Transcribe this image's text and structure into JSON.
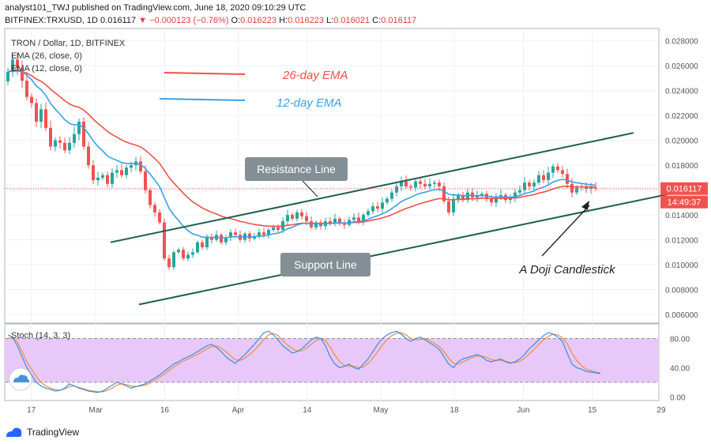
{
  "header": {
    "line1": "analyst101_TWJ published on TradingView.com, June 18, 2020 09:10:29 UTC",
    "symbol": "BITFINEX:TRXUSD, 1D",
    "last": "0.016117",
    "arrow": "▼",
    "change": "−0.000123 (−0.76%)",
    "o_label": "O:",
    "o": "0.016223",
    "h_label": "H:",
    "h": "0.016223",
    "l_label": "L:",
    "l": "0.016021",
    "c_label": "C:",
    "c": "0.016117"
  },
  "legend": {
    "title": "TRON / Dollar, 1D, BITFINEX",
    "ema26": "EMA (26, close, 0)",
    "ema12": "EMA (12, close, 0)",
    "stoch": "Stoch (14, 3, 3)"
  },
  "annotations": {
    "ema26_label": "26-day EMA",
    "ema12_label": "12-day EMA",
    "resistance": "Resistance Line",
    "support": "Support Line",
    "doji": "A Doji Candlestick"
  },
  "price_tag": {
    "value": "0.016117",
    "countdown": "14:49:37"
  },
  "colors": {
    "up": "#26a69a",
    "down": "#ef5350",
    "ema26": "#f0504a",
    "ema12": "#3aa0e8",
    "channel": "#1d5f4b",
    "stoch_k": "#3a8ee6",
    "stoch_d": "#f08c40",
    "stoch_band": "#e7c8f8"
  },
  "footer": {
    "brand": "TradingView",
    "logo_icon": "tradingview-logo-icon"
  },
  "chart_data": [
    {
      "type": "candlestick",
      "title": "TRON / Dollar, 1D, BITFINEX",
      "x_ticks": [
        "17",
        "Mar",
        "16",
        "Apr",
        "14",
        "May",
        "18",
        "Jun",
        "15",
        "29"
      ],
      "y_ticks": [
        "0.028000",
        "0.026000",
        "0.024000",
        "0.022000",
        "0.020000",
        "0.018000",
        "0.016000",
        "0.014000",
        "0.012000",
        "0.010000",
        "0.008000",
        "0.006000"
      ],
      "ylim": [
        0.0053,
        0.029
      ],
      "close": [
        0.0255,
        0.0265,
        0.0258,
        0.0248,
        0.0235,
        0.023,
        0.0215,
        0.0225,
        0.021,
        0.0195,
        0.02,
        0.0198,
        0.0192,
        0.0198,
        0.0205,
        0.0215,
        0.0195,
        0.018,
        0.0168,
        0.017,
        0.0172,
        0.0165,
        0.0174,
        0.0176,
        0.0172,
        0.0178,
        0.018,
        0.0183,
        0.0175,
        0.016,
        0.0148,
        0.0142,
        0.0134,
        0.0105,
        0.0098,
        0.011,
        0.0112,
        0.0105,
        0.0108,
        0.011,
        0.0118,
        0.0114,
        0.0122,
        0.012,
        0.0124,
        0.0118,
        0.0122,
        0.0126,
        0.0124,
        0.012,
        0.0125,
        0.0121,
        0.0123,
        0.0126,
        0.0124,
        0.0128,
        0.013,
        0.0128,
        0.0135,
        0.014,
        0.0137,
        0.0142,
        0.0139,
        0.0135,
        0.013,
        0.0134,
        0.0131,
        0.0135,
        0.0133,
        0.0137,
        0.0134,
        0.0132,
        0.0136,
        0.0138,
        0.0135,
        0.014,
        0.0143,
        0.0147,
        0.0145,
        0.015,
        0.0153,
        0.0158,
        0.0163,
        0.0167,
        0.0163,
        0.0162,
        0.0167,
        0.0165,
        0.0163,
        0.0165,
        0.0166,
        0.0163,
        0.0151,
        0.0142,
        0.0153,
        0.0156,
        0.0152,
        0.0158,
        0.0154,
        0.0155,
        0.0157,
        0.0153,
        0.015,
        0.0154,
        0.0156,
        0.0152,
        0.0154,
        0.0158,
        0.016,
        0.0166,
        0.0163,
        0.0166,
        0.0172,
        0.0168,
        0.0174,
        0.0179,
        0.0176,
        0.0173,
        0.0165,
        0.0158,
        0.0162,
        0.0163,
        0.0161,
        0.0162,
        0.01612
      ],
      "series": [
        {
          "name": "EMA (26, close, 0)"
        },
        {
          "name": "EMA (12, close, 0)"
        }
      ],
      "channel": {
        "resistance": [
          [
            0.0118,
            0
          ],
          [
            0.0206,
            112
          ]
        ],
        "support": [
          [
            0.0068,
            6
          ],
          [
            0.0162,
            126
          ]
        ]
      }
    },
    {
      "type": "line",
      "title": "Stoch (14, 3, 3)",
      "y_ticks": [
        "80.00",
        "40.00",
        "0.00"
      ],
      "ylim": [
        -5,
        100
      ],
      "band": [
        20,
        80
      ],
      "k": [
        85,
        82,
        70,
        55,
        40,
        30,
        20,
        15,
        12,
        10,
        8,
        9,
        12,
        18,
        15,
        12,
        10,
        8,
        7,
        6,
        8,
        12,
        16,
        20,
        18,
        15,
        12,
        14,
        16,
        18,
        22,
        26,
        30,
        35,
        40,
        45,
        48,
        52,
        55,
        58,
        62,
        66,
        70,
        72,
        68,
        62,
        55,
        50,
        46,
        52,
        58,
        65,
        72,
        80,
        88,
        90,
        85,
        78,
        70,
        65,
        60,
        62,
        66,
        72,
        78,
        82,
        80,
        70,
        55,
        45,
        40,
        42,
        45,
        40,
        38,
        45,
        52,
        62,
        72,
        80,
        85,
        88,
        90,
        86,
        80,
        76,
        80,
        82,
        78,
        74,
        70,
        65,
        55,
        45,
        40,
        48,
        52,
        54,
        56,
        58,
        55,
        50,
        48,
        50,
        52,
        48,
        46,
        48,
        52,
        58,
        66,
        72,
        78,
        84,
        88,
        86,
        82,
        76,
        60,
        45,
        40,
        38,
        35,
        34,
        33,
        32
      ],
      "d": [
        80,
        82,
        75,
        62,
        48,
        38,
        28,
        20,
        15,
        12,
        10,
        9,
        11,
        14,
        15,
        13,
        11,
        9,
        8,
        7,
        7,
        9,
        12,
        16,
        18,
        17,
        15,
        14,
        15,
        16,
        19,
        23,
        27,
        31,
        36,
        41,
        45,
        49,
        52,
        55,
        58,
        62,
        66,
        69,
        70,
        67,
        62,
        56,
        51,
        50,
        53,
        58,
        64,
        71,
        79,
        85,
        87,
        84,
        77,
        71,
        66,
        63,
        63,
        67,
        72,
        77,
        80,
        77,
        68,
        57,
        48,
        43,
        42,
        42,
        40,
        41,
        46,
        53,
        62,
        71,
        79,
        84,
        87,
        88,
        85,
        80,
        78,
        79,
        80,
        77,
        73,
        69,
        62,
        53,
        46,
        45,
        48,
        51,
        54,
        56,
        56,
        54,
        51,
        50,
        50,
        49,
        47,
        47,
        49,
        53,
        59,
        65,
        72,
        78,
        83,
        86,
        85,
        81,
        73,
        60,
        50,
        43,
        38,
        36,
        34,
        33
      ]
    }
  ]
}
